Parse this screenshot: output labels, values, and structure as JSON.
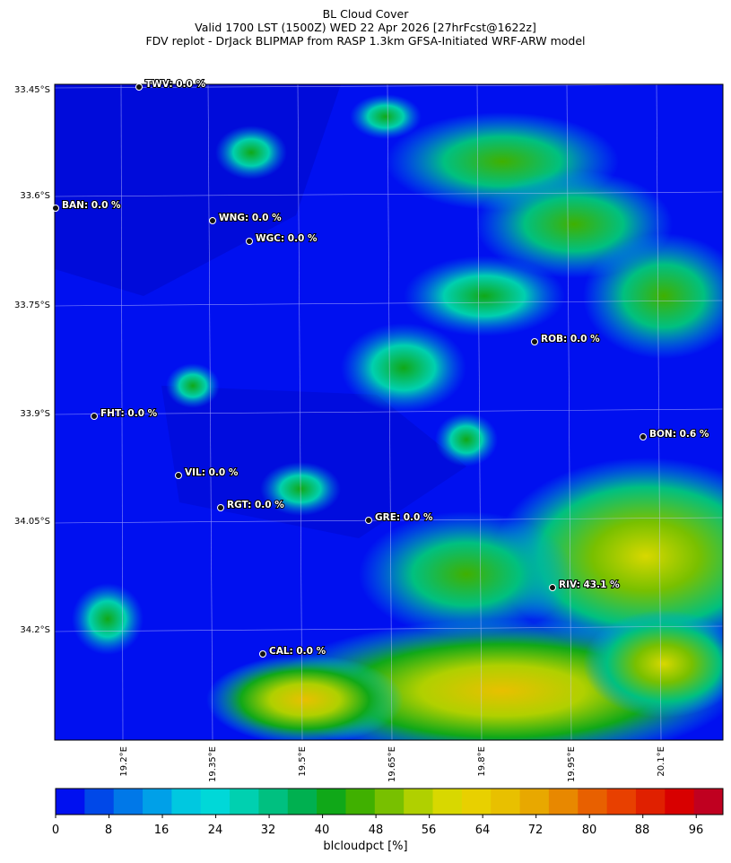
{
  "header": {
    "title": "BL Cloud Cover",
    "valid_line": "Valid 1700 LST (1500Z) WED 22 Apr 2026 [27hrFcst@1622z]",
    "source_line": "FDV replot - DrJack BLIPMAP from RASP 1.3km GFSA-Initiated WRF-ARW model"
  },
  "map": {
    "lat_labels": [
      "33.45°S",
      "33.6°S",
      "33.75°S",
      "33.9°S",
      "34.05°S",
      "34.2°S"
    ],
    "lon_labels": [
      "19.2°E",
      "19.35°E",
      "19.5°E",
      "19.65°E",
      "19.8°E",
      "19.95°E",
      "20.1°E"
    ],
    "stations": [
      {
        "code": "TWV",
        "label": "TWV: 0.0 %",
        "value": 0.0
      },
      {
        "code": "BAN",
        "label": "BAN: 0.0 %",
        "value": 0.0
      },
      {
        "code": "WNG",
        "label": "WNG: 0.0 %",
        "value": 0.0
      },
      {
        "code": "WGC",
        "label": "WGC: 0.0 %",
        "value": 0.0
      },
      {
        "code": "ROB",
        "label": "ROB: 0.0 %",
        "value": 0.0
      },
      {
        "code": "FHT",
        "label": "FHT: 0.0 %",
        "value": 0.0
      },
      {
        "code": "BON",
        "label": "BON: 0.6 %",
        "value": 0.6
      },
      {
        "code": "VIL",
        "label": "VIL: 0.0 %",
        "value": 0.0
      },
      {
        "code": "RGT",
        "label": "RGT: 0.0 %",
        "value": 0.0
      },
      {
        "code": "GRE",
        "label": "GRE: 0.0 %",
        "value": 0.0
      },
      {
        "code": "RIV",
        "label": "RIV: 43.1 %",
        "value": 43.1
      },
      {
        "code": "CAL",
        "label": "CAL: 0.0 %",
        "value": 0.0
      }
    ],
    "cloud_regions": [
      {
        "name": "north-east cloud band",
        "value": 45
      },
      {
        "name": "south-east cloud mass",
        "value": 50
      },
      {
        "name": "south cloud mass",
        "value": 58
      },
      {
        "name": "central cloud patches",
        "value": 30
      }
    ]
  },
  "colorbar": {
    "ticks": [
      "0",
      "8",
      "16",
      "24",
      "32",
      "40",
      "48",
      "56",
      "64",
      "72",
      "80",
      "88",
      "96"
    ],
    "unit_label": "blcloudpct [%]",
    "range": [
      0,
      100
    ],
    "colors": [
      "#0010f0",
      "#0048e8",
      "#0078e8",
      "#00a0e8",
      "#00c8e0",
      "#00d8d8",
      "#00d0b0",
      "#00c080",
      "#00b050",
      "#10a818",
      "#40b000",
      "#78c000",
      "#b0d000",
      "#d8d800",
      "#e8d000",
      "#e8c000",
      "#e8a800",
      "#e88800",
      "#e86000",
      "#e84000",
      "#e02000",
      "#d80000",
      "#c00020"
    ]
  }
}
